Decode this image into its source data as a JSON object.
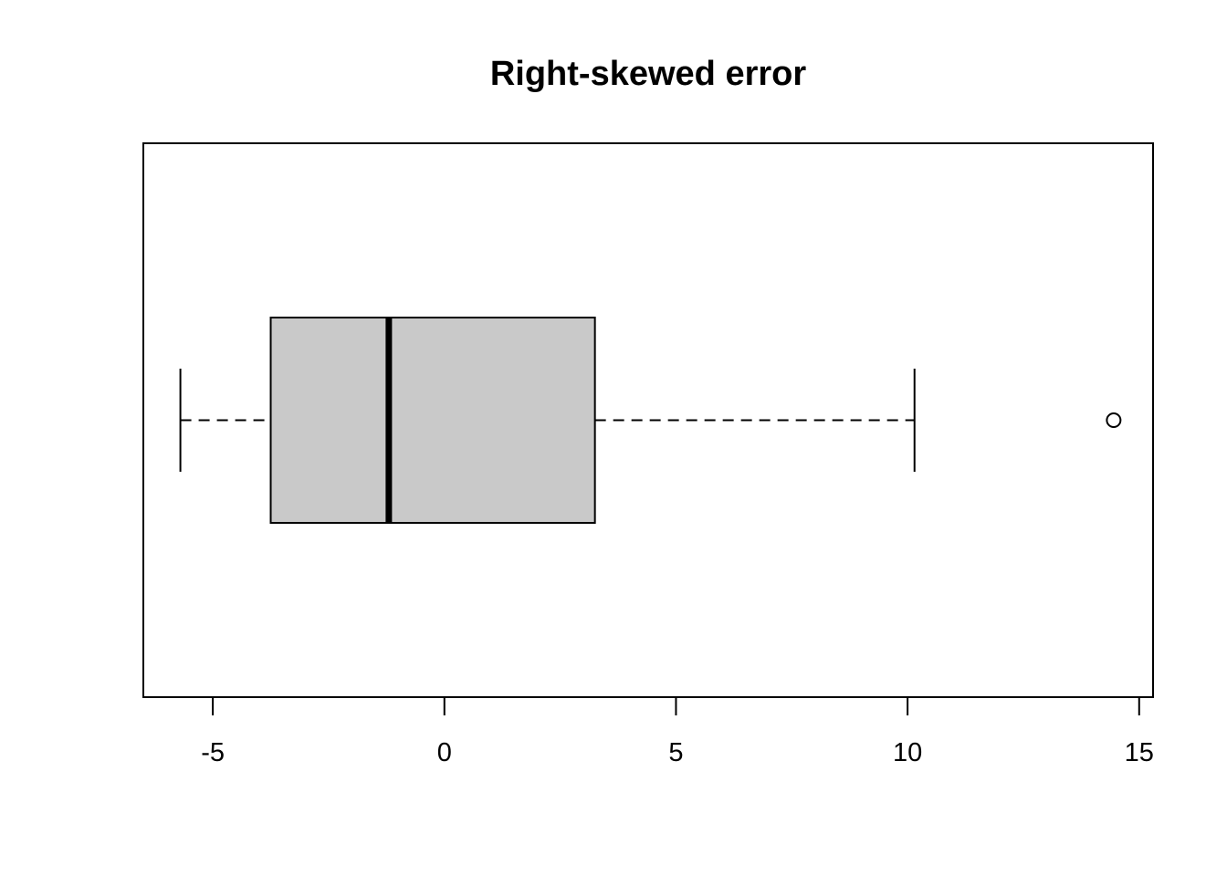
{
  "chart_data": {
    "type": "boxplot",
    "orientation": "horizontal",
    "title": "Right-skewed error",
    "xlabel": "",
    "ylabel": "",
    "xlim": [
      -6.5,
      15.3
    ],
    "xticks": [
      -5,
      0,
      5,
      10,
      15
    ],
    "xtick_labels": [
      "-5",
      "0",
      "5",
      "10",
      "15"
    ],
    "grid": false,
    "box": {
      "whisker_low": -5.7,
      "q1": -3.75,
      "median": -1.2,
      "q3": 3.25,
      "whisker_high": 10.15,
      "outliers": [
        14.45
      ]
    },
    "colors": {
      "box_fill": "#c9c9c9",
      "stroke": "#000000",
      "background": "#ffffff"
    }
  }
}
